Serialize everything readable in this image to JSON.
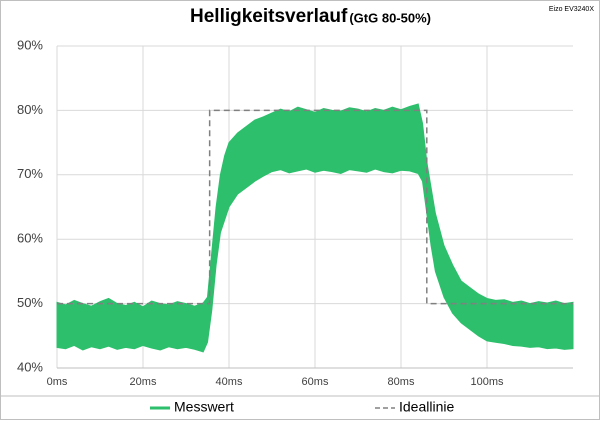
{
  "chart_data": {
    "type": "band",
    "title": "Helligkeitsverlauf",
    "subtitle": "(GtG 80-50%)",
    "annotation": "Eizo EV3240X",
    "xlim": [
      0,
      120
    ],
    "ylim": [
      40,
      90
    ],
    "xticks": [
      {
        "value": 0,
        "label": "0ms"
      },
      {
        "value": 20,
        "label": "20ms"
      },
      {
        "value": 40,
        "label": "40ms"
      },
      {
        "value": 60,
        "label": "60ms"
      },
      {
        "value": 80,
        "label": "80ms"
      },
      {
        "value": 100,
        "label": "100ms"
      }
    ],
    "yticks": [
      {
        "value": 40,
        "label": "40%"
      },
      {
        "value": 50,
        "label": "50%"
      },
      {
        "value": 60,
        "label": "60%"
      },
      {
        "value": 70,
        "label": "70%"
      },
      {
        "value": 80,
        "label": "80%"
      },
      {
        "value": 90,
        "label": "90%"
      }
    ],
    "grid": true,
    "series": [
      {
        "name": "Messwert",
        "color": "#2dbf6c",
        "x": [
          0,
          2,
          4,
          6,
          8,
          10,
          12,
          14,
          16,
          18,
          20,
          22,
          24,
          26,
          28,
          30,
          32,
          34,
          35,
          36,
          37,
          38,
          39,
          40,
          42,
          44,
          46,
          48,
          50,
          52,
          54,
          56,
          58,
          60,
          62,
          64,
          66,
          68,
          70,
          72,
          74,
          76,
          78,
          80,
          82,
          84,
          85,
          86,
          87,
          88,
          90,
          92,
          94,
          96,
          98,
          100,
          102,
          104,
          106,
          108,
          110,
          112,
          114,
          116,
          118,
          120
        ],
        "low": [
          43.2,
          43,
          43.5,
          42.8,
          43.3,
          43,
          43.4,
          42.9,
          43.2,
          43,
          43.5,
          43.1,
          42.8,
          43.3,
          43,
          43.2,
          42.9,
          42.5,
          44,
          49,
          56,
          61,
          63,
          65,
          67,
          68,
          69,
          69.8,
          70.5,
          70.8,
          70.3,
          70.6,
          70.9,
          70.4,
          70.7,
          70.5,
          70.2,
          70.8,
          70.6,
          70.4,
          70.9,
          70.5,
          70.3,
          70.7,
          70.6,
          70.2,
          69,
          64,
          59,
          55,
          51,
          48.5,
          47,
          46,
          45,
          44.2,
          44,
          43.8,
          43.5,
          43.4,
          43.2,
          43.3,
          43,
          43.1,
          42.9,
          43
        ],
        "high": [
          50.2,
          49.8,
          50.5,
          50,
          49.6,
          50.3,
          50.8,
          50,
          49.7,
          50.2,
          49.5,
          50.4,
          50,
          49.8,
          50.3,
          50,
          49.6,
          50.1,
          51,
          58,
          65,
          70,
          73,
          75,
          76.5,
          77.5,
          78.5,
          79,
          79.6,
          80.2,
          79.8,
          80.5,
          80.1,
          79.7,
          80.3,
          80,
          79.9,
          80.4,
          80.2,
          79.8,
          80.3,
          80,
          80.5,
          80.1,
          80.6,
          81,
          78,
          72,
          68,
          64,
          59,
          56,
          53.5,
          52.5,
          51.5,
          50.8,
          50.5,
          50.6,
          50.2,
          50.4,
          50,
          50.3,
          50.1,
          50.4,
          50,
          50.2
        ]
      },
      {
        "name": "Ideallinie",
        "color": "#808080",
        "dashed": true,
        "x": [
          0,
          35.5,
          35.5,
          86,
          86,
          120
        ],
        "values": [
          50,
          50,
          80,
          80,
          50,
          50
        ]
      }
    ]
  }
}
